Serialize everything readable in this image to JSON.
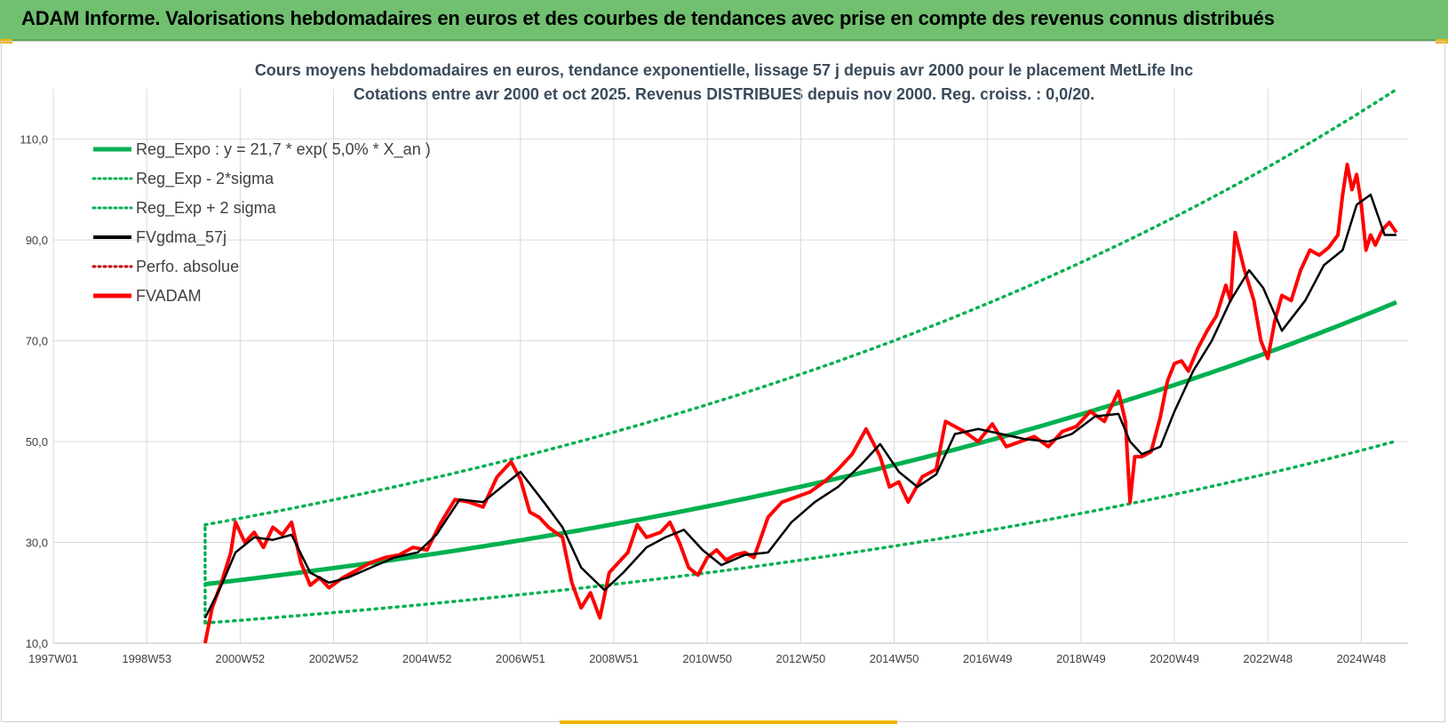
{
  "header": {
    "title": "ADAM Informe. Valorisations hebdomadaires en euros et des courbes de tendances avec prise en compte des revenus connus distribués"
  },
  "colors": {
    "banner": "#70c070",
    "reg": "#00b050",
    "fv57": "#000000",
    "fvadam": "#ff0000",
    "perfo": "#c00000"
  },
  "chart_data": {
    "type": "line",
    "title_lines": [
      "Cours moyens hebdomadaires en euros, tendance exponentielle, lissage 57 j depuis avr 2000 pour le placement MetLife Inc",
      "Cotations entre avr 2000 et oct 2025.  Revenus DISTRIBUES depuis nov 2000. Reg. croiss. : 0,0/20."
    ],
    "x_tick_labels": [
      "1997W01",
      "1998W53",
      "2000W52",
      "2002W52",
      "2004W52",
      "2006W51",
      "2008W51",
      "2010W50",
      "2012W50",
      "2014W50",
      "2016W49",
      "2018W49",
      "2020W49",
      "2022W48",
      "2024W48"
    ],
    "y_tick_labels": [
      "10,0",
      "30,0",
      "50,0",
      "70,0",
      "90,0",
      "110,0"
    ],
    "ylim": [
      10,
      120
    ],
    "xlim": [
      1997.0,
      2026.0
    ],
    "grid": true,
    "legend_position": "top-left",
    "legend": [
      {
        "name": "Reg_Expo : y = 21,7 * exp( 5,0% *  X_an )",
        "style": "solid-thick",
        "color": "#00b050"
      },
      {
        "name": "Reg_Exp - 2*sigma",
        "style": "dotted",
        "color": "#00b050"
      },
      {
        "name": "Reg_Exp + 2 sigma",
        "style": "dotted",
        "color": "#00b050"
      },
      {
        "name": "FVgdma_57j",
        "style": "solid",
        "color": "#000000"
      },
      {
        "name": "Perfo. absolue",
        "style": "dotted",
        "color": "#c00000"
      },
      {
        "name": "FVADAM",
        "style": "solid-thick",
        "color": "#ff0000"
      }
    ],
    "regression": {
      "a": 21.7,
      "rate": 0.05,
      "start_year": 2000.25,
      "end_year": 2025.8,
      "minus_2sigma_start": 14.0,
      "plus_2sigma_start": 33.5
    },
    "series": [
      {
        "name": "FVADAM",
        "x": [
          2000.25,
          2000.4,
          2000.6,
          2000.8,
          2000.9,
          2001.1,
          2001.3,
          2001.5,
          2001.7,
          2001.9,
          2002.1,
          2002.3,
          2002.5,
          2002.7,
          2002.9,
          2003.2,
          2003.5,
          2003.8,
          2004.1,
          2004.4,
          2004.7,
          2005.0,
          2005.3,
          2005.6,
          2005.9,
          2006.2,
          2006.5,
          2006.8,
          2007.0,
          2007.2,
          2007.4,
          2007.6,
          2007.9,
          2008.1,
          2008.3,
          2008.5,
          2008.7,
          2008.9,
          2009.1,
          2009.3,
          2009.5,
          2009.7,
          2010.0,
          2010.2,
          2010.4,
          2010.6,
          2010.8,
          2011.0,
          2011.2,
          2011.4,
          2011.6,
          2011.8,
          2012.0,
          2012.3,
          2012.6,
          2012.9,
          2013.2,
          2013.5,
          2013.8,
          2014.1,
          2014.4,
          2014.7,
          2014.9,
          2015.1,
          2015.3,
          2015.6,
          2015.9,
          2016.1,
          2016.3,
          2016.5,
          2016.8,
          2017.1,
          2017.4,
          2017.7,
          2018.0,
          2018.3,
          2018.6,
          2018.9,
          2019.2,
          2019.5,
          2019.8,
          2019.95,
          2020.05,
          2020.15,
          2020.3,
          2020.5,
          2020.7,
          2020.85,
          2021.0,
          2021.15,
          2021.3,
          2021.5,
          2021.7,
          2021.9,
          2022.1,
          2022.2,
          2022.3,
          2022.5,
          2022.7,
          2022.85,
          2023.0,
          2023.15,
          2023.3,
          2023.5,
          2023.7,
          2023.9,
          2024.1,
          2024.3,
          2024.5,
          2024.6,
          2024.7,
          2024.8,
          2024.9,
          2025.0,
          2025.1,
          2025.2,
          2025.3,
          2025.45,
          2025.6,
          2025.75
        ],
        "values": [
          10.0,
          17.0,
          22.0,
          28.0,
          34.0,
          30.0,
          32.0,
          29.0,
          33.0,
          31.5,
          34.0,
          26.0,
          21.5,
          23.0,
          21.0,
          23.0,
          24.5,
          26.0,
          27.0,
          27.5,
          29.0,
          28.5,
          34.0,
          38.5,
          38.0,
          37.0,
          43.0,
          46.0,
          42.5,
          36.0,
          35.0,
          33.0,
          31.0,
          22.0,
          17.0,
          20.0,
          15.0,
          24.0,
          26.0,
          28.0,
          33.5,
          31.0,
          32.0,
          34.0,
          30.0,
          25.0,
          23.5,
          27.0,
          28.5,
          26.5,
          27.5,
          28.0,
          27.0,
          35.0,
          38.0,
          39.0,
          40.0,
          42.0,
          44.5,
          47.5,
          52.5,
          47.0,
          41.0,
          42.0,
          38.0,
          43.0,
          44.5,
          54.0,
          53.0,
          52.0,
          50.0,
          53.5,
          49.0,
          50.0,
          51.0,
          49.0,
          52.0,
          53.0,
          56.0,
          54.0,
          60.0,
          54.0,
          38.0,
          47.0,
          47.0,
          48.0,
          55.0,
          62.0,
          65.5,
          66.0,
          64.0,
          68.5,
          72.0,
          75.0,
          81.0,
          78.0,
          91.5,
          84.0,
          78.0,
          70.0,
          66.5,
          74.0,
          79.0,
          78.0,
          84.0,
          88.0,
          87.0,
          88.5,
          91.0,
          99.0,
          105.0,
          100.0,
          103.0,
          97.0,
          88.0,
          91.0,
          89.0,
          92.0,
          93.5,
          91.5
        ]
      },
      {
        "name": "FVgdma_57j",
        "x": [
          2000.25,
          2000.6,
          2000.9,
          2001.3,
          2001.7,
          2002.1,
          2002.5,
          2002.9,
          2003.3,
          2003.8,
          2004.3,
          2004.8,
          2005.2,
          2005.7,
          2006.2,
          2006.6,
          2007.0,
          2007.5,
          2007.9,
          2008.3,
          2008.8,
          2009.2,
          2009.7,
          2010.1,
          2010.5,
          2010.9,
          2011.3,
          2011.8,
          2012.3,
          2012.8,
          2013.3,
          2013.8,
          2014.3,
          2014.7,
          2015.1,
          2015.5,
          2015.9,
          2016.3,
          2016.8,
          2017.3,
          2017.8,
          2018.3,
          2018.8,
          2019.3,
          2019.8,
          2020.05,
          2020.3,
          2020.7,
          2021.0,
          2021.4,
          2021.8,
          2022.2,
          2022.6,
          2022.9,
          2023.3,
          2023.8,
          2024.2,
          2024.6,
          2024.9,
          2025.2,
          2025.5,
          2025.75
        ],
        "values": [
          15.0,
          21.5,
          28.0,
          31.0,
          30.5,
          31.5,
          24.0,
          22.0,
          23.0,
          25.0,
          27.0,
          28.0,
          31.5,
          38.5,
          38.0,
          41.0,
          44.0,
          38.0,
          33.0,
          25.0,
          20.5,
          24.0,
          29.0,
          31.0,
          32.5,
          28.5,
          25.5,
          27.5,
          28.0,
          34.0,
          38.0,
          41.0,
          45.5,
          49.5,
          44.0,
          41.0,
          43.5,
          51.5,
          52.5,
          51.5,
          50.5,
          50.0,
          51.5,
          55.0,
          55.5,
          50.0,
          47.5,
          49.0,
          56.0,
          64.0,
          70.0,
          78.0,
          84.0,
          80.5,
          72.0,
          78.0,
          85.0,
          88.0,
          97.0,
          99.0,
          91.0,
          91.0
        ]
      }
    ]
  }
}
